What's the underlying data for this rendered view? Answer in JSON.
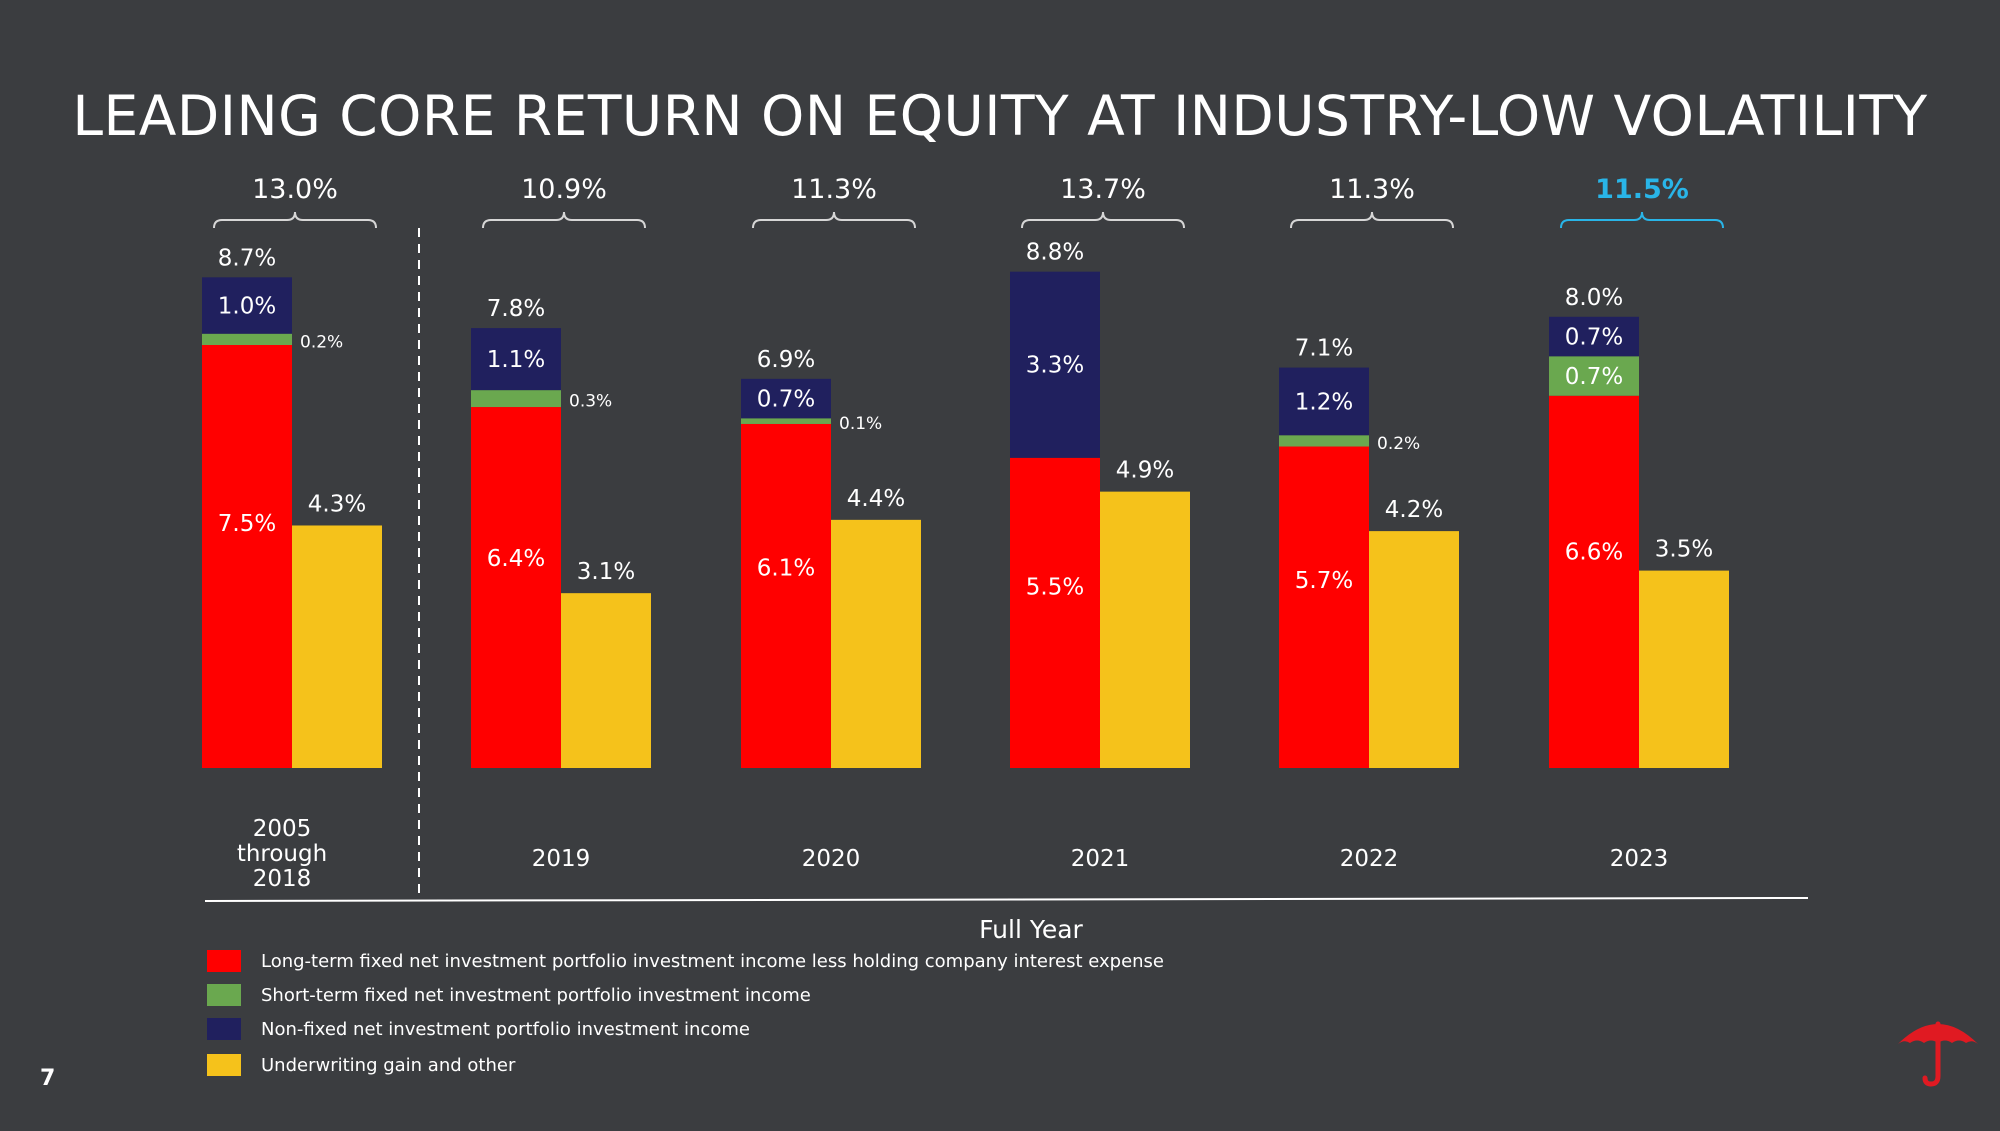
{
  "slide": {
    "title": "LEADING CORE RETURN ON EQUITY AT INDUSTRY-LOW VOLATILITY",
    "page_number": "7"
  },
  "colors": {
    "background": "#3b3d40",
    "long_term": "#ff0000",
    "short_term": "#6aa84f",
    "non_fixed": "#20205e",
    "underwriting": "#f5c21b",
    "highlight": "#29b5e8",
    "logo": "#e01a22"
  },
  "legend": [
    {
      "label": "Long-term fixed net investment portfolio investment income less holding company interest expense",
      "color": "#ff0000"
    },
    {
      "label": "Short-term fixed net investment portfolio investment income",
      "color": "#6aa84f"
    },
    {
      "label": "Non-fixed net investment portfolio investment income",
      "color": "#20205e"
    },
    {
      "label": "Underwriting gain and other",
      "color": "#f5c21b"
    }
  ],
  "chart_data": {
    "type": "bar",
    "stacked": true,
    "title": "LEADING CORE RETURN ON EQUITY AT INDUSTRY-LOW VOLATILITY",
    "xlabel": "Full Year",
    "ylabel": "",
    "categories": [
      "2005 through 2018",
      "2019",
      "2020",
      "2021",
      "2022",
      "2023"
    ],
    "category_labels": [
      [
        "2005",
        "through",
        "2018"
      ],
      [
        "2019"
      ],
      [
        "2020"
      ],
      [
        "2021"
      ],
      [
        "2022"
      ],
      [
        "2023"
      ]
    ],
    "totals": [
      "13.0%",
      "10.9%",
      "11.3%",
      "13.7%",
      "11.3%",
      "11.5%"
    ],
    "highlight_category": "2023",
    "stacked_series": [
      {
        "name": "Long-term fixed net investment portfolio investment income less holding company interest expense",
        "values": [
          7.5,
          6.4,
          6.1,
          5.5,
          5.7,
          6.6
        ],
        "labels": [
          "7.5%",
          "6.4%",
          "6.1%",
          "5.5%",
          "5.7%",
          "6.6%"
        ]
      },
      {
        "name": "Short-term fixed net investment portfolio investment income",
        "values": [
          0.2,
          0.3,
          0.1,
          0.0,
          0.2,
          0.7
        ],
        "labels": [
          "0.2%",
          "0.3%",
          "0.1%",
          "",
          "0.2%",
          "0.7%"
        ]
      },
      {
        "name": "Non-fixed net investment portfolio investment income",
        "values": [
          1.0,
          1.1,
          0.7,
          3.3,
          1.2,
          0.7
        ],
        "labels": [
          "1.0%",
          "1.1%",
          "0.7%",
          "3.3%",
          "1.2%",
          "0.7%"
        ]
      }
    ],
    "stack_totals": [
      "8.7%",
      "7.8%",
      "6.9%",
      "8.8%",
      "7.1%",
      "8.0%"
    ],
    "standalone_series": {
      "name": "Underwriting gain and other",
      "values": [
        4.3,
        3.1,
        4.4,
        4.9,
        4.2,
        3.5
      ],
      "labels": [
        "4.3%",
        "3.1%",
        "4.4%",
        "4.9%",
        "4.2%",
        "3.5%"
      ]
    },
    "ylim": [
      0,
      9
    ],
    "grid": false,
    "legend_position": "bottom-left"
  }
}
